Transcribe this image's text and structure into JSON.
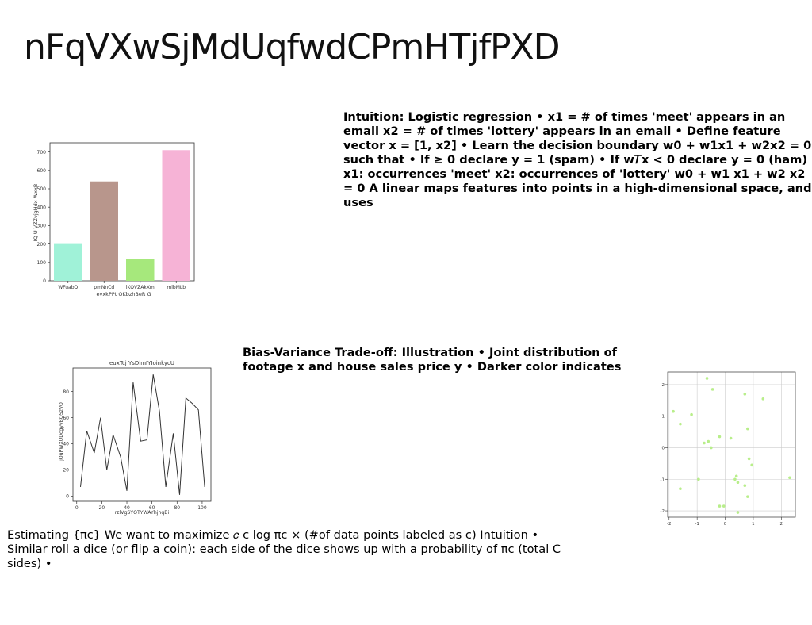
{
  "slide": {
    "title": "nFqVXwSjMdUqfwdCPmHTjfPXD",
    "para1": "Intuition: Logistic regression • x1 = # of times 'meet' appears in an email x2 = # of times 'lottery' appears in an email • Define feature vector x = [1, x2] • Learn the decision boundary w0 + w1x1 + w2x2 = 0 such that • If ≥ 0 declare y = 1 (spam) • If w𝑇x < 0 declare y = 0 (ham) x1: occurrences 'meet' x2: occurrences of 'lottery' w0 + w1 x1 + w2 x2 = 0 A linear maps features into points in a high-dimensional space, and uses",
    "para2": "Bias-Variance Trade-off: Illustration • Joint distribution of footage x and house sales price y • Darker color indicates",
    "para3": "Estimating {πc} We want to maximize 𝑐 c log πc × (#of data points labeled as c) Intuition • Similar roll a dice (or flip a coin): each side of the dice shows up with a probability of πc (total C sides) •"
  },
  "chart_data": [
    {
      "type": "bar",
      "title": "",
      "xlabel": "evxkPPt OKbzhBeR G",
      "ylabel": "IQ U VZZvjgHdx WxxB",
      "categories": [
        "WFuabQ",
        "pmNnCd",
        "lKQVZAkXm",
        "mlbMLb"
      ],
      "values": [
        200,
        540,
        120,
        710
      ],
      "colors": [
        "#a0f2d8",
        "#b8968c",
        "#a6e87c",
        "#f6b3d6"
      ],
      "ylim": [
        0,
        750
      ],
      "yticks": [
        0,
        100,
        200,
        300,
        400,
        500,
        600,
        700
      ]
    },
    {
      "type": "line",
      "title": "euxTcj YsDlmIYIoinkycU",
      "xlabel": "rzlVgSYQTYWAYhjhqBi",
      "ylabel": "jOuPWXUDcgyvBQSzVO",
      "x": [
        3,
        8,
        14,
        19,
        24,
        29,
        35,
        40,
        45,
        51,
        56,
        61,
        66,
        71,
        77,
        82,
        87,
        92,
        97,
        102
      ],
      "y": [
        7,
        50,
        33,
        60,
        20,
        47,
        30,
        4,
        87,
        42,
        43,
        93,
        65,
        7,
        48,
        1,
        75,
        71,
        66,
        7
      ],
      "color": "#333333",
      "xlim": [
        -3,
        107
      ],
      "ylim": [
        -4,
        98
      ],
      "xticks": [
        0,
        20,
        40,
        60,
        80,
        100
      ],
      "yticks": [
        0,
        20,
        40,
        60,
        80
      ]
    },
    {
      "type": "scatter",
      "title": "",
      "xlabel": "",
      "ylabel": "",
      "color": "#b8ee8a",
      "grid": true,
      "xlim": [
        -2.05,
        2.5
      ],
      "ylim": [
        -2.2,
        2.4
      ],
      "xticks": [
        -2,
        -1,
        0,
        1,
        2
      ],
      "yticks": [
        -2,
        -1,
        0,
        1,
        2
      ],
      "points": [
        [
          -0.65,
          2.2
        ],
        [
          -0.45,
          1.85
        ],
        [
          0.7,
          1.7
        ],
        [
          1.35,
          1.55
        ],
        [
          -1.85,
          1.15
        ],
        [
          -1.2,
          1.05
        ],
        [
          -1.6,
          0.75
        ],
        [
          0.8,
          0.6
        ],
        [
          -0.2,
          0.35
        ],
        [
          0.2,
          0.3
        ],
        [
          -0.6,
          0.2
        ],
        [
          -0.75,
          0.15
        ],
        [
          -0.5,
          0.0
        ],
        [
          0.85,
          -0.35
        ],
        [
          0.95,
          -0.55
        ],
        [
          0.4,
          -0.9
        ],
        [
          -0.95,
          -1.0
        ],
        [
          0.35,
          -1.0
        ],
        [
          0.45,
          -1.1
        ],
        [
          0.7,
          -1.2
        ],
        [
          -1.6,
          -1.3
        ],
        [
          0.8,
          -1.55
        ],
        [
          -0.2,
          -1.85
        ],
        [
          -0.05,
          -1.85
        ],
        [
          0.45,
          -2.05
        ],
        [
          2.3,
          -0.95
        ]
      ]
    }
  ]
}
